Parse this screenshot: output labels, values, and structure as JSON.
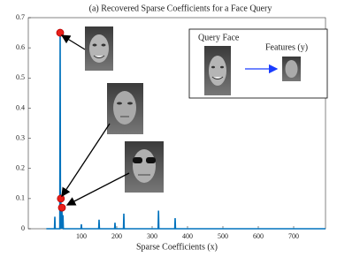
{
  "chart_data": {
    "type": "line",
    "title": "(a) Recovered Sparse Coefficients for a Face Query",
    "xlabel": "Sparse Coefficients (x)",
    "x": [
      1,
      24,
      25,
      26,
      39,
      40,
      41,
      42,
      43,
      45,
      46,
      48,
      49,
      99,
      100,
      101,
      149,
      150,
      151,
      194,
      195,
      196,
      219,
      220,
      221,
      317,
      318,
      319,
      364,
      365,
      366,
      790
    ],
    "series": [
      {
        "color": "#0072bd",
        "values": [
          0,
          0,
          0.04,
          0,
          0,
          0.65,
          0,
          0.1,
          0,
          0.07,
          0,
          0.045,
          0,
          0,
          0.015,
          0,
          0,
          0.03,
          0,
          0,
          0.02,
          0,
          0,
          0.05,
          0,
          0,
          0.06,
          0,
          0,
          0.035,
          0,
          0
        ]
      }
    ],
    "highlights": {
      "color": "#e8201a",
      "x": [
        40,
        42,
        45
      ],
      "values": [
        0.65,
        0.1,
        0.07
      ]
    },
    "xlim": [
      -50,
      790
    ],
    "ylim": [
      0,
      0.7
    ],
    "xticks": [
      100,
      200,
      300,
      400,
      500,
      600,
      700
    ],
    "yticks": [
      0,
      0.1,
      0.2,
      0.3,
      0.4,
      0.5,
      0.6,
      0.7
    ],
    "grid": false,
    "inset": {
      "left_label": "Query Face",
      "right_label": "Features (y)"
    }
  }
}
